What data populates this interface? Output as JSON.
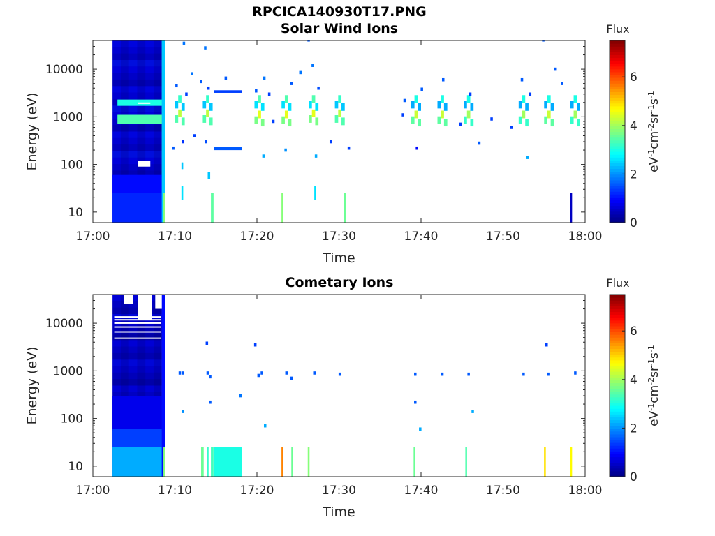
{
  "figure": {
    "title": "RPCICA140930T17.PNG"
  },
  "colors": {
    "colormap": "jet",
    "axis": "#262626",
    "background": "#ffffff"
  },
  "chart_data": [
    {
      "type": "heatmap",
      "title": "Solar Wind Ions",
      "xlabel": "Time",
      "ylabel": "Energy (eV)",
      "x_ticks": [
        "17:00",
        "17:10",
        "17:20",
        "17:30",
        "17:40",
        "17:50",
        "18:00"
      ],
      "y_ticks": [
        "10",
        "100",
        "1000",
        "10000"
      ],
      "y_scale": "log",
      "ylim": [
        6,
        40000
      ],
      "xlim_minutes": [
        0,
        60
      ],
      "colorbar": {
        "label": "Flux",
        "unit_label": "eV-1cm-2sr-1s-1",
        "ticks": [
          "0",
          "2",
          "4",
          "6"
        ],
        "range": [
          0,
          7.5
        ]
      },
      "blocks": [
        {
          "t0": 2.4,
          "t1": 8.4,
          "e0": 6,
          "e1": 40000,
          "v": 0.4
        },
        {
          "t0": 2.4,
          "t1": 8.4,
          "e0": 6,
          "e1": 25,
          "v": 1.2
        },
        {
          "t0": 2.4,
          "t1": 8.4,
          "e0": 25,
          "e1": 60,
          "v": 1.0
        },
        {
          "t0": 8.4,
          "t1": 8.8,
          "e0": 6,
          "e1": 40000,
          "v": 2.4
        },
        {
          "t0": 8.6,
          "t1": 8.8,
          "e0": 6,
          "e1": 25,
          "v": 3.8
        },
        {
          "t0": 3.0,
          "t1": 8.4,
          "e0": 700,
          "e1": 1100,
          "v": 3.4
        },
        {
          "t0": 3.0,
          "t1": 8.4,
          "e0": 1700,
          "e1": 2300,
          "v": 3.0
        },
        {
          "t0": 14.8,
          "t1": 18.2,
          "e0": 3200,
          "e1": 3600,
          "v": 1.4
        },
        {
          "t0": 14.8,
          "t1": 18.2,
          "e0": 200,
          "e1": 230,
          "v": 1.6
        },
        {
          "t0": 14.4,
          "t1": 14.7,
          "e0": 6,
          "e1": 25,
          "v": 3.5
        },
        {
          "t0": 23.0,
          "t1": 23.2,
          "e0": 6,
          "e1": 25,
          "v": 3.8
        },
        {
          "t0": 30.6,
          "t1": 30.8,
          "e0": 6,
          "e1": 25,
          "v": 3.6
        },
        {
          "t0": 58.2,
          "t1": 58.4,
          "e0": 6,
          "e1": 25,
          "v": 0.5
        },
        {
          "t0": 10.8,
          "t1": 11.0,
          "e0": 18,
          "e1": 35,
          "v": 2.6
        },
        {
          "t0": 27.0,
          "t1": 27.2,
          "e0": 18,
          "e1": 35,
          "v": 2.6
        },
        {
          "t0": 14.0,
          "t1": 14.3,
          "e0": 50,
          "e1": 70,
          "v": 2.4
        },
        {
          "t0": 10.8,
          "t1": 11.0,
          "e0": 80,
          "e1": 110,
          "v": 2.4
        }
      ],
      "clusters": [
        {
          "t": 10.6,
          "e": 900,
          "v": 4.2
        },
        {
          "t": 14.0,
          "e": 900,
          "v": 4.2
        },
        {
          "t": 20.3,
          "e": 850,
          "v": 4.5
        },
        {
          "t": 23.6,
          "e": 850,
          "v": 4.5
        },
        {
          "t": 26.9,
          "e": 900,
          "v": 4.5
        },
        {
          "t": 30.1,
          "e": 900,
          "v": 4.2
        },
        {
          "t": 39.4,
          "e": 850,
          "v": 4.3
        },
        {
          "t": 42.6,
          "e": 850,
          "v": 4.3
        },
        {
          "t": 45.8,
          "e": 850,
          "v": 4.0
        },
        {
          "t": 52.5,
          "e": 850,
          "v": 4.0
        },
        {
          "t": 55.6,
          "e": 850,
          "v": 4.3
        },
        {
          "t": 58.8,
          "e": 850,
          "v": 4.0
        },
        {
          "t": 10.6,
          "e": 1800,
          "v": 3.2
        },
        {
          "t": 14.0,
          "e": 1800,
          "v": 3.2
        },
        {
          "t": 20.3,
          "e": 1800,
          "v": 3.4
        },
        {
          "t": 23.6,
          "e": 1800,
          "v": 3.4
        },
        {
          "t": 26.9,
          "e": 1800,
          "v": 3.4
        },
        {
          "t": 30.1,
          "e": 1800,
          "v": 3.2
        },
        {
          "t": 39.4,
          "e": 1800,
          "v": 3.0
        },
        {
          "t": 42.6,
          "e": 1800,
          "v": 3.0
        },
        {
          "t": 45.8,
          "e": 1800,
          "v": 3.0
        },
        {
          "t": 52.5,
          "e": 1800,
          "v": 3.0
        },
        {
          "t": 55.6,
          "e": 1800,
          "v": 3.0
        },
        {
          "t": 58.8,
          "e": 1800,
          "v": 3.0
        }
      ],
      "points": [
        {
          "t": 10.2,
          "e": 4500,
          "v": 1.6
        },
        {
          "t": 11.4,
          "e": 3000,
          "v": 1.4
        },
        {
          "t": 12.1,
          "e": 8000,
          "v": 1.8
        },
        {
          "t": 13.2,
          "e": 5500,
          "v": 1.6
        },
        {
          "t": 14.1,
          "e": 4000,
          "v": 1.4
        },
        {
          "t": 11.0,
          "e": 300,
          "v": 1.3
        },
        {
          "t": 12.4,
          "e": 400,
          "v": 1.4
        },
        {
          "t": 13.8,
          "e": 300,
          "v": 1.5
        },
        {
          "t": 9.8,
          "e": 220,
          "v": 1.6
        },
        {
          "t": 11.1,
          "e": 35000,
          "v": 1.8
        },
        {
          "t": 13.7,
          "e": 28000,
          "v": 1.8
        },
        {
          "t": 19.9,
          "e": 3500,
          "v": 1.6
        },
        {
          "t": 20.9,
          "e": 6500,
          "v": 1.8
        },
        {
          "t": 21.5,
          "e": 3000,
          "v": 1.4
        },
        {
          "t": 24.2,
          "e": 5000,
          "v": 1.6
        },
        {
          "t": 25.3,
          "e": 8500,
          "v": 1.8
        },
        {
          "t": 26.8,
          "e": 12000,
          "v": 1.8
        },
        {
          "t": 27.5,
          "e": 4000,
          "v": 1.5
        },
        {
          "t": 20.8,
          "e": 150,
          "v": 2.2
        },
        {
          "t": 23.5,
          "e": 200,
          "v": 2.0
        },
        {
          "t": 27.2,
          "e": 150,
          "v": 2.2
        },
        {
          "t": 26.3,
          "e": 41000,
          "v": 1.6
        },
        {
          "t": 38.0,
          "e": 2200,
          "v": 1.6
        },
        {
          "t": 40.1,
          "e": 3800,
          "v": 1.6
        },
        {
          "t": 42.7,
          "e": 6000,
          "v": 1.6
        },
        {
          "t": 46.0,
          "e": 3000,
          "v": 1.4
        },
        {
          "t": 47.1,
          "e": 280,
          "v": 1.6
        },
        {
          "t": 52.3,
          "e": 6000,
          "v": 1.6
        },
        {
          "t": 53.3,
          "e": 3000,
          "v": 1.4
        },
        {
          "t": 54.9,
          "e": 41000,
          "v": 1.6
        },
        {
          "t": 56.4,
          "e": 10000,
          "v": 1.6
        },
        {
          "t": 57.2,
          "e": 5000,
          "v": 1.6
        },
        {
          "t": 53.0,
          "e": 140,
          "v": 2.2
        },
        {
          "t": 39.5,
          "e": 220,
          "v": 1.0
        },
        {
          "t": 22.0,
          "e": 800,
          "v": 1.4
        },
        {
          "t": 29.0,
          "e": 300,
          "v": 1.4
        },
        {
          "t": 31.2,
          "e": 220,
          "v": 1.4
        },
        {
          "t": 37.8,
          "e": 1100,
          "v": 1.4
        },
        {
          "t": 44.8,
          "e": 700,
          "v": 1.4
        },
        {
          "t": 48.6,
          "e": 900,
          "v": 1.4
        },
        {
          "t": 51.0,
          "e": 600,
          "v": 1.4
        },
        {
          "t": 16.2,
          "e": 6500,
          "v": 1.6
        }
      ]
    },
    {
      "type": "heatmap",
      "title": "Cometary Ions",
      "xlabel": "Time",
      "ylabel": "Energy (eV)",
      "x_ticks": [
        "17:00",
        "17:10",
        "17:20",
        "17:30",
        "17:40",
        "17:50",
        "18:00"
      ],
      "y_ticks": [
        "10",
        "100",
        "1000",
        "10000"
      ],
      "y_scale": "log",
      "ylim": [
        6,
        40000
      ],
      "xlim_minutes": [
        0,
        60
      ],
      "colorbar": {
        "label": "Flux",
        "unit_label": "eV-1cm-2sr-1s-1",
        "ticks": [
          "0",
          "2",
          "4",
          "6"
        ],
        "range": [
          0,
          7.5
        ]
      },
      "blocks": [
        {
          "t0": 2.4,
          "t1": 8.4,
          "e0": 6,
          "e1": 40000,
          "v": 0.3
        },
        {
          "t0": 2.4,
          "t1": 8.4,
          "e0": 60,
          "e1": 300,
          "v": 0.8
        },
        {
          "t0": 2.4,
          "t1": 8.4,
          "e0": 25,
          "e1": 60,
          "v": 1.4
        },
        {
          "t0": 2.4,
          "t1": 8.4,
          "e0": 6,
          "e1": 25,
          "v": 2.2
        },
        {
          "t0": 8.4,
          "t1": 8.8,
          "e0": 6,
          "e1": 40000,
          "v": 1.0
        },
        {
          "t0": 8.6,
          "t1": 8.8,
          "e0": 6,
          "e1": 25,
          "v": 3.8
        },
        {
          "t0": 14.8,
          "t1": 18.2,
          "e0": 6,
          "e1": 25,
          "v": 3.0
        },
        {
          "t0": 13.2,
          "t1": 13.5,
          "e0": 6,
          "e1": 25,
          "v": 3.6
        },
        {
          "t0": 13.9,
          "t1": 14.1,
          "e0": 6,
          "e1": 25,
          "v": 3.2
        },
        {
          "t0": 14.4,
          "t1": 14.7,
          "e0": 6,
          "e1": 25,
          "v": 3.3
        },
        {
          "t0": 23.0,
          "t1": 23.2,
          "e0": 6,
          "e1": 25,
          "v": 5.6
        },
        {
          "t0": 24.2,
          "t1": 24.4,
          "e0": 6,
          "e1": 25,
          "v": 3.6
        },
        {
          "t0": 26.2,
          "t1": 26.4,
          "e0": 6,
          "e1": 25,
          "v": 3.8
        },
        {
          "t0": 39.1,
          "t1": 39.3,
          "e0": 6,
          "e1": 25,
          "v": 3.6
        },
        {
          "t0": 45.4,
          "t1": 45.6,
          "e0": 6,
          "e1": 25,
          "v": 3.4
        },
        {
          "t0": 55.0,
          "t1": 55.2,
          "e0": 6,
          "e1": 25,
          "v": 4.9
        },
        {
          "t0": 58.2,
          "t1": 58.4,
          "e0": 6,
          "e1": 25,
          "v": 4.7
        }
      ],
      "clusters": [],
      "points": [
        {
          "t": 10.6,
          "e": 900,
          "v": 1.6
        },
        {
          "t": 11.0,
          "e": 900,
          "v": 1.6
        },
        {
          "t": 14.0,
          "e": 900,
          "v": 1.6
        },
        {
          "t": 14.3,
          "e": 750,
          "v": 1.6
        },
        {
          "t": 13.9,
          "e": 3800,
          "v": 1.4
        },
        {
          "t": 14.3,
          "e": 220,
          "v": 1.6
        },
        {
          "t": 11.0,
          "e": 140,
          "v": 2.0
        },
        {
          "t": 20.2,
          "e": 800,
          "v": 1.6
        },
        {
          "t": 20.6,
          "e": 900,
          "v": 1.6
        },
        {
          "t": 23.6,
          "e": 900,
          "v": 1.6
        },
        {
          "t": 24.2,
          "e": 700,
          "v": 1.6
        },
        {
          "t": 27.0,
          "e": 900,
          "v": 1.6
        },
        {
          "t": 30.1,
          "e": 850,
          "v": 1.6
        },
        {
          "t": 39.3,
          "e": 850,
          "v": 1.6
        },
        {
          "t": 42.6,
          "e": 850,
          "v": 1.6
        },
        {
          "t": 45.8,
          "e": 850,
          "v": 1.6
        },
        {
          "t": 52.5,
          "e": 850,
          "v": 1.6
        },
        {
          "t": 55.5,
          "e": 850,
          "v": 1.6
        },
        {
          "t": 58.8,
          "e": 900,
          "v": 1.6
        },
        {
          "t": 19.8,
          "e": 3500,
          "v": 1.4
        },
        {
          "t": 55.3,
          "e": 3500,
          "v": 1.4
        },
        {
          "t": 21.0,
          "e": 70,
          "v": 2.2
        },
        {
          "t": 39.9,
          "e": 60,
          "v": 2.2
        },
        {
          "t": 46.3,
          "e": 140,
          "v": 2.2
        },
        {
          "t": 18.0,
          "e": 300,
          "v": 1.8
        },
        {
          "t": 39.3,
          "e": 220,
          "v": 1.6
        }
      ],
      "notes_white": [
        {
          "t0": 3.8,
          "t1": 4.9,
          "e0": 25000,
          "e1": 40000
        },
        {
          "t0": 5.5,
          "t1": 7.2,
          "e0": 12000,
          "e1": 40000
        },
        {
          "t0": 7.6,
          "t1": 8.4,
          "e0": 20000,
          "e1": 40000
        }
      ]
    }
  ]
}
